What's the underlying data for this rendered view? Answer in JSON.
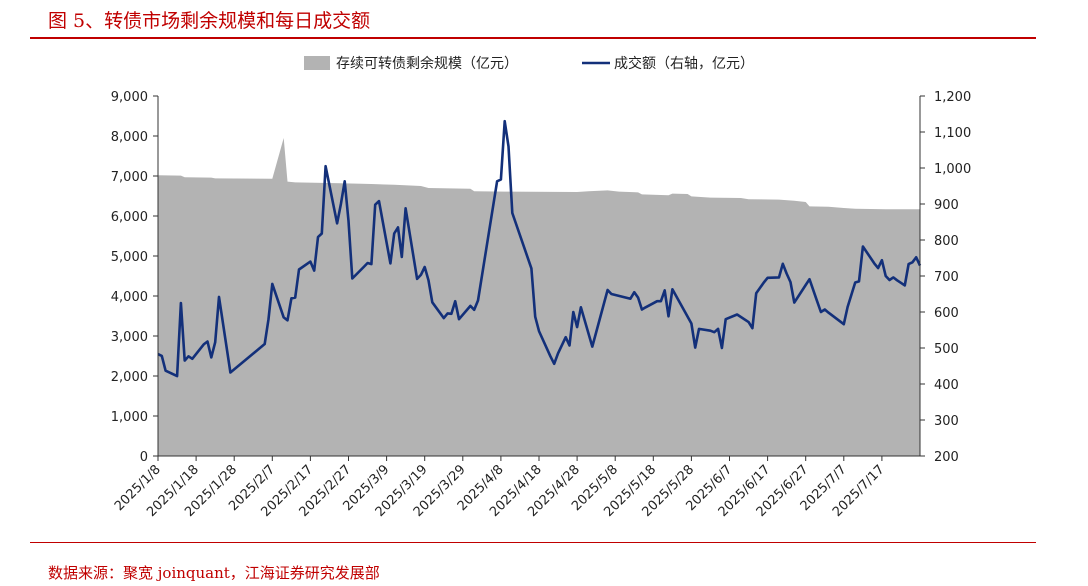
{
  "figure": {
    "title": "图 5、转债市场剩余规模和每日成交额",
    "source": "数据来源：聚宽 joinquant，江海证券研究发展部"
  },
  "colors": {
    "title_red": "#c00000",
    "area_gray": "#b3b3b3",
    "line_navy": "#13307a"
  },
  "chart_data": {
    "type": "area+line",
    "title": "",
    "legend": [
      "存续可转债剩余规模（亿元）",
      "成交额（右轴，亿元）"
    ],
    "legend_position": "top-center",
    "grid": false,
    "x_ticks": [
      "2025/1/8",
      "2025/1/18",
      "2025/1/28",
      "2025/2/7",
      "2025/2/17",
      "2025/2/27",
      "2025/3/9",
      "2025/3/19",
      "2025/3/29",
      "2025/4/8",
      "2025/4/18",
      "2025/4/28",
      "2025/5/8",
      "2025/5/18",
      "2025/5/28",
      "2025/6/7",
      "2025/6/17",
      "2025/6/27",
      "2025/7/7",
      "2025/7/17"
    ],
    "left_axis": {
      "ylim": [
        0,
        9000
      ],
      "ticks": [
        "0",
        "1,000",
        "2,000",
        "3,000",
        "4,000",
        "5,000",
        "6,000",
        "7,000",
        "8,000",
        "9,000"
      ]
    },
    "right_axis": {
      "ylim": [
        200,
        1200
      ],
      "ticks": [
        "200",
        "300",
        "400",
        "500",
        "600",
        "700",
        "800",
        "900",
        "1,000",
        "1,100",
        "1,200"
      ]
    },
    "series": [
      {
        "name": "存续可转债剩余规模（亿元）",
        "type": "area",
        "axis": "left",
        "points": [
          [
            "2025-01-08",
            7020
          ],
          [
            "2025-01-14",
            7010
          ],
          [
            "2025-01-15",
            6970
          ],
          [
            "2025-01-22",
            6960
          ],
          [
            "2025-01-23",
            6940
          ],
          [
            "2025-02-07",
            6930
          ],
          [
            "2025-02-10",
            7950
          ],
          [
            "2025-02-11",
            6860
          ],
          [
            "2025-02-13",
            6840
          ],
          [
            "2025-02-25",
            6820
          ],
          [
            "2025-03-05",
            6800
          ],
          [
            "2025-03-11",
            6780
          ],
          [
            "2025-03-18",
            6750
          ],
          [
            "2025-03-20",
            6700
          ],
          [
            "2025-03-31",
            6680
          ],
          [
            "2025-04-01",
            6620
          ],
          [
            "2025-04-09",
            6610
          ],
          [
            "2025-04-28",
            6600
          ],
          [
            "2025-05-01",
            6620
          ],
          [
            "2025-05-06",
            6640
          ],
          [
            "2025-05-09",
            6610
          ],
          [
            "2025-05-14",
            6590
          ],
          [
            "2025-05-15",
            6540
          ],
          [
            "2025-05-22",
            6520
          ],
          [
            "2025-05-23",
            6560
          ],
          [
            "2025-05-27",
            6550
          ],
          [
            "2025-05-28",
            6490
          ],
          [
            "2025-06-02",
            6460
          ],
          [
            "2025-06-10",
            6450
          ],
          [
            "2025-06-12",
            6420
          ],
          [
            "2025-06-20",
            6410
          ],
          [
            "2025-06-24",
            6380
          ],
          [
            "2025-06-27",
            6350
          ],
          [
            "2025-06-28",
            6240
          ],
          [
            "2025-07-03",
            6230
          ],
          [
            "2025-07-07",
            6200
          ],
          [
            "2025-07-10",
            6180
          ],
          [
            "2025-07-18",
            6170
          ]
        ]
      },
      {
        "name": "成交额（右轴，亿元）",
        "type": "line",
        "axis": "right",
        "points": [
          [
            "2025-01-08",
            483
          ],
          [
            "2025-01-09",
            478
          ],
          [
            "2025-01-10",
            437
          ],
          [
            "2025-01-13",
            422
          ],
          [
            "2025-01-14",
            625
          ],
          [
            "2025-01-15",
            465
          ],
          [
            "2025-01-16",
            477
          ],
          [
            "2025-01-17",
            470
          ],
          [
            "2025-01-20",
            510
          ],
          [
            "2025-01-21",
            518
          ],
          [
            "2025-01-22",
            474
          ],
          [
            "2025-01-23",
            516
          ],
          [
            "2025-01-24",
            642
          ],
          [
            "2025-01-27",
            432
          ],
          [
            "2025-02-05",
            511
          ],
          [
            "2025-02-06",
            580
          ],
          [
            "2025-02-07",
            678
          ],
          [
            "2025-02-10",
            585
          ],
          [
            "2025-02-11",
            577
          ],
          [
            "2025-02-12",
            638
          ],
          [
            "2025-02-13",
            640
          ],
          [
            "2025-02-14",
            718
          ],
          [
            "2025-02-17",
            740
          ],
          [
            "2025-02-18",
            715
          ],
          [
            "2025-02-19",
            808
          ],
          [
            "2025-02-20",
            818
          ],
          [
            "2025-02-21",
            1005
          ],
          [
            "2025-02-24",
            846
          ],
          [
            "2025-02-25",
            900
          ],
          [
            "2025-02-26",
            963
          ],
          [
            "2025-02-27",
            853
          ],
          [
            "2025-02-28",
            693
          ],
          [
            "2025-03-03",
            725
          ],
          [
            "2025-03-04",
            736
          ],
          [
            "2025-03-05",
            733
          ],
          [
            "2025-03-06",
            898
          ],
          [
            "2025-03-07",
            908
          ],
          [
            "2025-03-10",
            735
          ],
          [
            "2025-03-11",
            818
          ],
          [
            "2025-03-12",
            835
          ],
          [
            "2025-03-13",
            753
          ],
          [
            "2025-03-14",
            888
          ],
          [
            "2025-03-17",
            692
          ],
          [
            "2025-03-18",
            703
          ],
          [
            "2025-03-19",
            725
          ],
          [
            "2025-03-20",
            688
          ],
          [
            "2025-03-21",
            627
          ],
          [
            "2025-03-24",
            583
          ],
          [
            "2025-03-25",
            596
          ],
          [
            "2025-03-26",
            595
          ],
          [
            "2025-03-27",
            630
          ],
          [
            "2025-03-28",
            580
          ],
          [
            "2025-03-31",
            617
          ],
          [
            "2025-04-01",
            606
          ],
          [
            "2025-04-02",
            632
          ],
          [
            "2025-04-07",
            963
          ],
          [
            "2025-04-08",
            968
          ],
          [
            "2025-04-09",
            1130
          ],
          [
            "2025-04-10",
            1060
          ],
          [
            "2025-04-11",
            875
          ],
          [
            "2025-04-16",
            721
          ],
          [
            "2025-04-17",
            587
          ],
          [
            "2025-04-18",
            547
          ],
          [
            "2025-04-21",
            477
          ],
          [
            "2025-04-22",
            456
          ],
          [
            "2025-04-23",
            485
          ],
          [
            "2025-04-25",
            530
          ],
          [
            "2025-04-26",
            507
          ],
          [
            "2025-04-27",
            600
          ],
          [
            "2025-04-28",
            558
          ],
          [
            "2025-04-29",
            613
          ],
          [
            "2025-05-02",
            504
          ],
          [
            "2025-05-06",
            661
          ],
          [
            "2025-05-07",
            650
          ],
          [
            "2025-05-12",
            637
          ],
          [
            "2025-05-13",
            655
          ],
          [
            "2025-05-14",
            640
          ],
          [
            "2025-05-15",
            607
          ],
          [
            "2025-05-16",
            613
          ],
          [
            "2025-05-19",
            630
          ],
          [
            "2025-05-20",
            630
          ],
          [
            "2025-05-21",
            660
          ],
          [
            "2025-05-22",
            588
          ],
          [
            "2025-05-23",
            663
          ],
          [
            "2025-05-28",
            568
          ],
          [
            "2025-05-29",
            501
          ],
          [
            "2025-05-30",
            553
          ],
          [
            "2025-06-02",
            548
          ],
          [
            "2025-06-03",
            544
          ],
          [
            "2025-06-04",
            553
          ],
          [
            "2025-06-05",
            500
          ],
          [
            "2025-06-06",
            580
          ],
          [
            "2025-06-09",
            593
          ],
          [
            "2025-06-12",
            572
          ],
          [
            "2025-06-13",
            555
          ],
          [
            "2025-06-14",
            652
          ],
          [
            "2025-06-16",
            682
          ],
          [
            "2025-06-17",
            695
          ],
          [
            "2025-06-20",
            696
          ],
          [
            "2025-06-21",
            734
          ],
          [
            "2025-06-22",
            707
          ],
          [
            "2025-06-23",
            683
          ],
          [
            "2025-06-24",
            626
          ],
          [
            "2025-06-27",
            675
          ],
          [
            "2025-06-28",
            691
          ],
          [
            "2025-06-30",
            630
          ],
          [
            "2025-07-01",
            600
          ],
          [
            "2025-07-02",
            607
          ],
          [
            "2025-07-03",
            598
          ],
          [
            "2025-07-07",
            566
          ],
          [
            "2025-07-08",
            614
          ],
          [
            "2025-07-09",
            648
          ],
          [
            "2025-07-10",
            682
          ],
          [
            "2025-07-11",
            685
          ],
          [
            "2025-07-12",
            782
          ],
          [
            "2025-07-15",
            735
          ],
          [
            "2025-07-16",
            722
          ],
          [
            "2025-07-17",
            744
          ],
          [
            "2025-07-18",
            700
          ],
          [
            "2025-07-19",
            689
          ],
          [
            "2025-07-20",
            696
          ],
          [
            "2025-07-21",
            688
          ],
          [
            "2025-07-22",
            681
          ],
          [
            "2025-07-23",
            674
          ],
          [
            "2025-07-24",
            733
          ],
          [
            "2025-07-25",
            738
          ],
          [
            "2025-07-26",
            752
          ],
          [
            "2025-07-27",
            729
          ]
        ]
      }
    ]
  }
}
